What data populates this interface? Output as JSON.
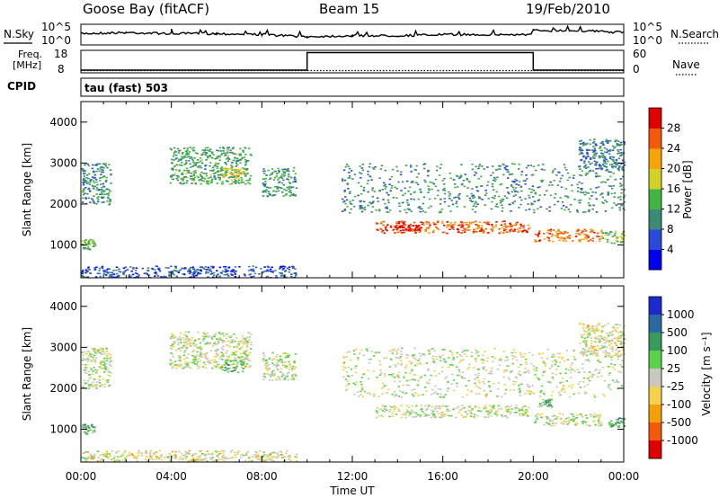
{
  "header": {
    "station": "Goose Bay (fitACF)",
    "beam": "Beam 15",
    "date": "19/Feb/2010"
  },
  "labels": {
    "nsky": "N.Sky",
    "nsearch": "N.Search",
    "freq_line1": "Freq.",
    "freq_line2": "[MHz]",
    "nave": "Nave",
    "cpid": "CPID",
    "cpid_value": "tau (fast) 503"
  },
  "chart_data": [
    {
      "type": "line",
      "panel": "noise",
      "left_ticks": [
        "10^5",
        "10^0"
      ],
      "right_ticks": [
        "10^5",
        "10^0"
      ],
      "series": [
        {
          "name": "N.Sky",
          "x": [
            0,
            2,
            4,
            6,
            8,
            10,
            12,
            14,
            16,
            18,
            19.9,
            20,
            22,
            24
          ],
          "y": [
            0.55,
            0.6,
            0.55,
            0.55,
            0.5,
            0.4,
            0.45,
            0.45,
            0.5,
            0.5,
            0.5,
            0.7,
            0.7,
            0.6
          ]
        }
      ]
    },
    {
      "type": "line",
      "panel": "frequency",
      "left_ticks": [
        "18",
        "8"
      ],
      "right_ticks": [
        "60",
        "0"
      ],
      "series": [
        {
          "name": "Freq.",
          "x": [
            0,
            10,
            10,
            20,
            20,
            24
          ],
          "y": [
            0.12,
            0.12,
            0.9,
            0.9,
            0.12,
            0.12
          ]
        },
        {
          "name": "Nave",
          "x": [
            0,
            24
          ],
          "y": [
            0.1,
            0.1
          ]
        }
      ]
    },
    {
      "type": "heatmap",
      "panel": "power",
      "title": "",
      "xlabel": "",
      "ylabel": "Slant Range [km]",
      "xlim": [
        0,
        24
      ],
      "ylim": [
        200,
        4500
      ],
      "y_ticks": [
        1000,
        2000,
        3000,
        4000
      ],
      "colorbar": {
        "label": "Power [dB]",
        "ticks": [
          "4",
          "8",
          "12",
          "16",
          "20",
          "24",
          "28"
        ],
        "colors": [
          "#0000f0",
          "#2a4ad8",
          "#3a8a76",
          "#42b442",
          "#d2d22a",
          "#f5a50a",
          "#f05a0a",
          "#e00000"
        ]
      },
      "regions": [
        {
          "t0": 0.0,
          "t1": 1.3,
          "r0": 2000,
          "r1": 3000,
          "level": 0.32
        },
        {
          "t0": 0.0,
          "t1": 0.6,
          "r0": 900,
          "r1": 1150,
          "level": 0.42
        },
        {
          "t0": 3.9,
          "t1": 7.5,
          "r0": 2500,
          "r1": 3400,
          "level": 0.38
        },
        {
          "t0": 6.2,
          "t1": 7.2,
          "r0": 2600,
          "r1": 2900,
          "level": 0.62
        },
        {
          "t0": 8.0,
          "t1": 9.5,
          "r0": 2200,
          "r1": 2900,
          "level": 0.36
        },
        {
          "t0": 11.5,
          "t1": 24.0,
          "r0": 1800,
          "r1": 3000,
          "level": 0.33
        },
        {
          "t0": 13.0,
          "t1": 19.8,
          "r0": 1300,
          "r1": 1600,
          "level": 0.82
        },
        {
          "t0": 13.8,
          "t1": 15.0,
          "r0": 1350,
          "r1": 1500,
          "level": 0.95
        },
        {
          "t0": 20.0,
          "t1": 23.0,
          "r0": 1100,
          "r1": 1400,
          "level": 0.78
        },
        {
          "t0": 22.0,
          "t1": 24.0,
          "r0": 2800,
          "r1": 3600,
          "level": 0.3
        },
        {
          "t0": 23.0,
          "t1": 24.0,
          "r0": 1050,
          "r1": 1350,
          "level": 0.45
        },
        {
          "t0": 0.0,
          "t1": 9.5,
          "r0": 220,
          "r1": 500,
          "level": 0.2
        }
      ]
    },
    {
      "type": "heatmap",
      "panel": "velocity",
      "title": "",
      "xlabel": "Time UT",
      "ylabel": "Slant Range [km]",
      "xlim": [
        0,
        24
      ],
      "ylim": [
        200,
        4500
      ],
      "y_ticks": [
        1000,
        2000,
        3000,
        4000
      ],
      "x_ticks": [
        "00:00",
        "04:00",
        "08:00",
        "12:00",
        "16:00",
        "20:00",
        "00:00"
      ],
      "colorbar": {
        "label": "Velocity [m s⁻¹]",
        "ticks": [
          "1000",
          "500",
          "100",
          "25",
          "-25",
          "-100",
          "-500",
          "-1000"
        ],
        "colors": [
          "#1a2ad0",
          "#2a6aa0",
          "#3a9a5a",
          "#5ad24a",
          "#c8c8c0",
          "#f5d24a",
          "#f5a00a",
          "#f05a0a",
          "#e00000"
        ]
      },
      "regions": [
        {
          "t0": 0.0,
          "t1": 1.3,
          "r0": 2000,
          "r1": 3000,
          "level": 0.5
        },
        {
          "t0": 0.0,
          "t1": 0.6,
          "r0": 900,
          "r1": 1150,
          "level": 0.35
        },
        {
          "t0": 3.9,
          "t1": 7.5,
          "r0": 2500,
          "r1": 3400,
          "level": 0.5
        },
        {
          "t0": 6.2,
          "t1": 7.2,
          "r0": 2400,
          "r1": 2700,
          "level": 0.35
        },
        {
          "t0": 8.0,
          "t1": 9.5,
          "r0": 2200,
          "r1": 2900,
          "level": 0.5
        },
        {
          "t0": 11.5,
          "t1": 24.0,
          "r0": 1800,
          "r1": 3000,
          "level": 0.5
        },
        {
          "t0": 13.0,
          "t1": 19.8,
          "r0": 1300,
          "r1": 1600,
          "level": 0.5
        },
        {
          "t0": 20.0,
          "t1": 23.0,
          "r0": 1100,
          "r1": 1400,
          "level": 0.5
        },
        {
          "t0": 20.2,
          "t1": 20.8,
          "r0": 1550,
          "r1": 1750,
          "level": 0.35
        },
        {
          "t0": 22.0,
          "t1": 24.0,
          "r0": 2800,
          "r1": 3600,
          "level": 0.55
        },
        {
          "t0": 23.3,
          "t1": 24.0,
          "r0": 1050,
          "r1": 1300,
          "level": 0.35
        },
        {
          "t0": 0.0,
          "t1": 9.5,
          "r0": 220,
          "r1": 500,
          "level": 0.55
        }
      ]
    }
  ]
}
